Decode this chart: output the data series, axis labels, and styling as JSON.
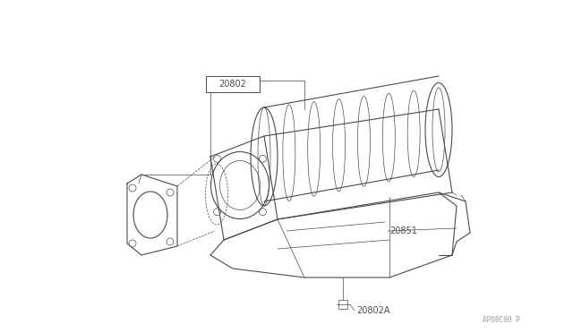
{
  "bg_color": "#ffffff",
  "line_color": "#4a4a4a",
  "label_color": "#4a4a4a",
  "fig_width": 6.4,
  "fig_height": 3.72,
  "dpi": 100
}
